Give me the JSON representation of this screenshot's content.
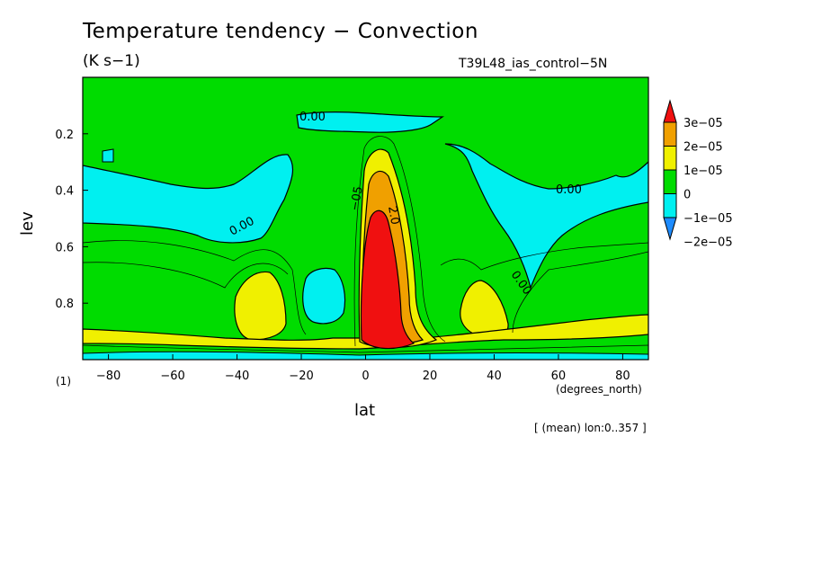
{
  "header": {
    "title": "Temperature tendency − Convection",
    "units": "(K s−1)",
    "run": "T39L48_ias_control−5N"
  },
  "footer": {
    "avg_note": "[ (mean) lon:0..357 ]"
  },
  "chart_data": {
    "type": "contour",
    "title": "Temperature tendency − Convection",
    "subtitle": "(K s−1)",
    "xlabel": "lat",
    "x_units": "(degrees_north)",
    "ylabel": "lev",
    "y_units": "(1)",
    "xlim": [
      -88,
      88
    ],
    "ylim": [
      1.0,
      0.0
    ],
    "y_reversed": true,
    "x_ticks": [
      -80,
      -60,
      -40,
      -20,
      0,
      20,
      40,
      60,
      80
    ],
    "x_tick_labels": [
      "−80",
      "−60",
      "−40",
      "−20",
      "0",
      "20",
      "40",
      "60",
      "80"
    ],
    "y_ticks": [
      0.2,
      0.4,
      0.6,
      0.8
    ],
    "y_tick_labels": [
      "0.2",
      "0.4",
      "0.6",
      "0.8"
    ],
    "colorbar": {
      "levels": [
        -2e-05,
        -1e-05,
        0,
        1e-05,
        2e-05,
        3e-05
      ],
      "labels": [
        "−2e−05",
        "−1e−05",
        "0",
        "1e−05",
        "2e−05",
        "3e−05"
      ],
      "colors": [
        "#1e8cff",
        "#00f0f0",
        "#00dc00",
        "#f0f000",
        "#f0a000",
        "#f01010"
      ]
    },
    "contour_labels": [
      "0.00",
      "0.00",
      "0.00",
      "0.00",
      "2.0",
      "−05"
    ],
    "features": [
      {
        "name": "tropical-convective-maximum",
        "lat": 5,
        "lev_range": [
          0.28,
          0.97
        ],
        "level": "above 3e-05"
      },
      {
        "name": "southern-subtropical-maximum",
        "lat": -35,
        "lev_range": [
          0.7,
          0.88
        ],
        "level": "1e-05 to 2e-05"
      },
      {
        "name": "northern-subtropical-maximum",
        "lat": 37,
        "lev_range": [
          0.72,
          0.88
        ],
        "level": "1e-05 to 2e-05"
      },
      {
        "name": "upper-level-cooling",
        "lev_range": [
          0.1,
          0.55
        ],
        "level": "−1e-05 to 0"
      }
    ]
  },
  "colors": {
    "red": "#f01010",
    "orange": "#f0a000",
    "yellow": "#f0f000",
    "green": "#00dc00",
    "cyan": "#00f0f0",
    "blue": "#1e8cff"
  }
}
